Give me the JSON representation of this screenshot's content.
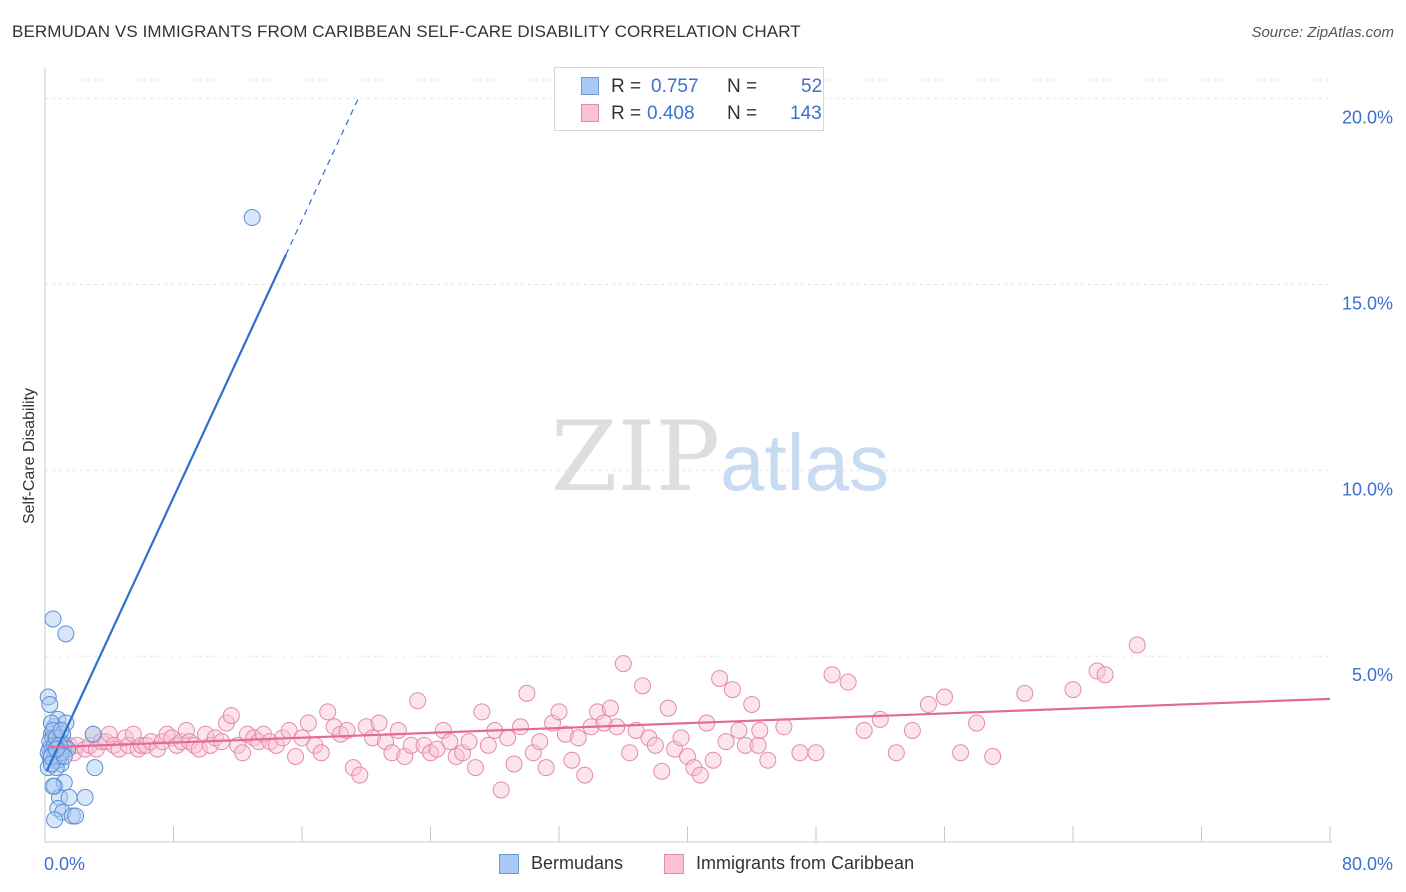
{
  "header": {
    "title": "BERMUDAN VS IMMIGRANTS FROM CARIBBEAN SELF-CARE DISABILITY CORRELATION CHART",
    "source": "Source: ZipAtlas.com"
  },
  "watermark": {
    "zip": "ZIP",
    "atlas": "atlas"
  },
  "legend": {
    "rows": [
      {
        "r_label": "R =",
        "r_value": "0.757",
        "n_label": "N =",
        "n_value": "52",
        "color": "#a9c8f2",
        "border": "#6a9ad8"
      },
      {
        "r_label": "R =",
        "r_value": "0.408",
        "n_label": "N =",
        "n_value": "143",
        "color": "#f9c3d3",
        "border": "#e58aa8"
      }
    ]
  },
  "chart_data": {
    "type": "scatter",
    "title": "BERMUDAN VS IMMIGRANTS FROM CARIBBEAN SELF-CARE DISABILITY CORRELATION CHART",
    "xlabel": "",
    "ylabel": "Self-Care Disability",
    "xlim": [
      0,
      80
    ],
    "ylim": [
      0,
      20.5
    ],
    "x_tick_labels": [
      "0.0%",
      "80.0%"
    ],
    "y_ticks": [
      5,
      10,
      15,
      20
    ],
    "y_tick_labels": [
      "5.0%",
      "10.0%",
      "15.0%",
      "20.0%"
    ],
    "grid": true,
    "series": [
      {
        "name": "Bermudans",
        "color": "#a9c8f2",
        "stroke": "#5c8fd6",
        "line_color": "#2f6fcf",
        "r": 0.757,
        "n": 52,
        "trend": {
          "x0": 0.1,
          "y0": 1.9,
          "x1": 15.0,
          "y1": 15.8,
          "dash_x1": 19.5,
          "dash_y1": 20.0
        },
        "points": [
          [
            0.2,
            3.9
          ],
          [
            0.3,
            2.5
          ],
          [
            0.4,
            2.9
          ],
          [
            0.5,
            2.2
          ],
          [
            0.6,
            3.1
          ],
          [
            0.2,
            2.0
          ],
          [
            0.4,
            2.6
          ],
          [
            0.7,
            2.4
          ],
          [
            0.8,
            3.3
          ],
          [
            0.3,
            2.3
          ],
          [
            0.5,
            2.8
          ],
          [
            0.9,
            2.7
          ],
          [
            1.0,
            2.1
          ],
          [
            0.6,
            2.4
          ],
          [
            0.8,
            2.2
          ],
          [
            1.2,
            2.6
          ],
          [
            0.4,
            3.2
          ],
          [
            0.7,
            2.0
          ],
          [
            0.3,
            2.7
          ],
          [
            0.5,
            3.0
          ],
          [
            0.9,
            2.3
          ],
          [
            1.1,
            2.9
          ],
          [
            1.4,
            2.5
          ],
          [
            1.3,
            3.2
          ],
          [
            0.2,
            2.4
          ],
          [
            0.6,
            2.6
          ],
          [
            0.8,
            2.5
          ],
          [
            1.0,
            2.4
          ],
          [
            0.4,
            2.3
          ],
          [
            0.3,
            3.7
          ],
          [
            0.5,
            6.0
          ],
          [
            1.3,
            5.6
          ],
          [
            12.9,
            16.8
          ],
          [
            3.1,
            2.0
          ],
          [
            3.0,
            2.9
          ],
          [
            0.6,
            1.5
          ],
          [
            0.9,
            1.2
          ],
          [
            1.2,
            1.6
          ],
          [
            1.5,
            1.2
          ],
          [
            2.5,
            1.2
          ],
          [
            0.8,
            0.9
          ],
          [
            1.1,
            0.8
          ],
          [
            0.6,
            0.6
          ],
          [
            1.7,
            0.7
          ],
          [
            1.9,
            0.7
          ],
          [
            0.5,
            1.5
          ],
          [
            0.7,
            2.8
          ],
          [
            1.0,
            3.0
          ],
          [
            0.4,
            2.1
          ],
          [
            0.9,
            2.6
          ],
          [
            1.2,
            2.3
          ],
          [
            0.7,
            2.5
          ]
        ]
      },
      {
        "name": "Immigrants from Caribbean",
        "color": "#f9c3d3",
        "stroke": "#e58aa8",
        "line_color": "#e36a98",
        "r": 0.408,
        "n": 143,
        "trend": {
          "x0": 0.3,
          "y0": 2.55,
          "x1": 80.0,
          "y1": 3.85
        },
        "points": [
          [
            0.5,
            2.6
          ],
          [
            0.8,
            2.4
          ],
          [
            1.0,
            2.7
          ],
          [
            1.2,
            2.5
          ],
          [
            1.5,
            2.6
          ],
          [
            1.8,
            2.4
          ],
          [
            2.0,
            2.6
          ],
          [
            2.5,
            2.5
          ],
          [
            2.8,
            2.6
          ],
          [
            3.0,
            2.9
          ],
          [
            3.2,
            2.5
          ],
          [
            3.5,
            2.7
          ],
          [
            3.8,
            2.7
          ],
          [
            4.0,
            2.9
          ],
          [
            4.3,
            2.6
          ],
          [
            4.6,
            2.5
          ],
          [
            5.0,
            2.8
          ],
          [
            5.2,
            2.6
          ],
          [
            5.5,
            2.9
          ],
          [
            5.8,
            2.5
          ],
          [
            6.0,
            2.6
          ],
          [
            6.3,
            2.6
          ],
          [
            6.6,
            2.7
          ],
          [
            7.0,
            2.5
          ],
          [
            7.3,
            2.7
          ],
          [
            7.6,
            2.9
          ],
          [
            7.9,
            2.8
          ],
          [
            8.2,
            2.6
          ],
          [
            8.5,
            2.7
          ],
          [
            8.8,
            3.0
          ],
          [
            9.0,
            2.7
          ],
          [
            9.3,
            2.6
          ],
          [
            9.6,
            2.5
          ],
          [
            10.0,
            2.9
          ],
          [
            10.3,
            2.6
          ],
          [
            10.6,
            2.8
          ],
          [
            11.0,
            2.7
          ],
          [
            11.3,
            3.2
          ],
          [
            11.6,
            3.4
          ],
          [
            12.0,
            2.6
          ],
          [
            12.3,
            2.4
          ],
          [
            12.6,
            2.9
          ],
          [
            13.0,
            2.8
          ],
          [
            13.3,
            2.7
          ],
          [
            13.6,
            2.9
          ],
          [
            14.0,
            2.7
          ],
          [
            14.4,
            2.6
          ],
          [
            14.8,
            2.8
          ],
          [
            15.2,
            3.0
          ],
          [
            15.6,
            2.3
          ],
          [
            16.0,
            2.8
          ],
          [
            16.4,
            3.2
          ],
          [
            16.8,
            2.6
          ],
          [
            17.2,
            2.4
          ],
          [
            17.6,
            3.5
          ],
          [
            18.0,
            3.1
          ],
          [
            18.4,
            2.9
          ],
          [
            18.8,
            3.0
          ],
          [
            19.2,
            2.0
          ],
          [
            19.6,
            1.8
          ],
          [
            20.0,
            3.1
          ],
          [
            20.4,
            2.8
          ],
          [
            20.8,
            3.2
          ],
          [
            21.2,
            2.7
          ],
          [
            21.6,
            2.4
          ],
          [
            22.0,
            3.0
          ],
          [
            22.4,
            2.3
          ],
          [
            22.8,
            2.6
          ],
          [
            23.2,
            3.8
          ],
          [
            23.6,
            2.6
          ],
          [
            24.0,
            2.4
          ],
          [
            24.4,
            2.5
          ],
          [
            24.8,
            3.0
          ],
          [
            25.2,
            2.7
          ],
          [
            25.6,
            2.3
          ],
          [
            26.0,
            2.4
          ],
          [
            26.4,
            2.7
          ],
          [
            26.8,
            2.0
          ],
          [
            27.2,
            3.5
          ],
          [
            27.6,
            2.6
          ],
          [
            28.0,
            3.0
          ],
          [
            28.4,
            1.4
          ],
          [
            28.8,
            2.8
          ],
          [
            29.2,
            2.1
          ],
          [
            29.6,
            3.1
          ],
          [
            30.0,
            4.0
          ],
          [
            30.4,
            2.4
          ],
          [
            30.8,
            2.7
          ],
          [
            31.2,
            2.0
          ],
          [
            31.6,
            3.2
          ],
          [
            32.0,
            3.5
          ],
          [
            32.4,
            2.9
          ],
          [
            32.8,
            2.2
          ],
          [
            33.2,
            2.8
          ],
          [
            33.6,
            1.8
          ],
          [
            34.0,
            3.1
          ],
          [
            34.4,
            3.5
          ],
          [
            34.8,
            3.2
          ],
          [
            35.2,
            3.6
          ],
          [
            35.6,
            3.1
          ],
          [
            36.0,
            4.8
          ],
          [
            36.4,
            2.4
          ],
          [
            36.8,
            3.0
          ],
          [
            37.2,
            4.2
          ],
          [
            37.6,
            2.8
          ],
          [
            38.0,
            2.6
          ],
          [
            38.4,
            1.9
          ],
          [
            38.8,
            3.6
          ],
          [
            39.2,
            2.5
          ],
          [
            39.6,
            2.8
          ],
          [
            40.0,
            2.3
          ],
          [
            40.4,
            2.0
          ],
          [
            40.8,
            1.8
          ],
          [
            41.2,
            3.2
          ],
          [
            41.6,
            2.2
          ],
          [
            42.0,
            4.4
          ],
          [
            42.4,
            2.7
          ],
          [
            42.8,
            4.1
          ],
          [
            43.2,
            3.0
          ],
          [
            43.6,
            2.6
          ],
          [
            44.0,
            3.7
          ],
          [
            44.4,
            2.6
          ],
          [
            45.0,
            2.2
          ],
          [
            46.0,
            3.1
          ],
          [
            47.0,
            2.4
          ],
          [
            48.0,
            2.4
          ],
          [
            49.0,
            4.5
          ],
          [
            50.0,
            4.3
          ],
          [
            51.0,
            3.0
          ],
          [
            52.0,
            3.3
          ],
          [
            53.0,
            2.4
          ],
          [
            54.0,
            3.0
          ],
          [
            55.0,
            3.7
          ],
          [
            56.0,
            3.9
          ],
          [
            57.0,
            2.4
          ],
          [
            58.0,
            3.2
          ],
          [
            59.0,
            2.3
          ],
          [
            61.0,
            4.0
          ],
          [
            64.0,
            4.1
          ],
          [
            65.5,
            4.6
          ],
          [
            68.0,
            5.3
          ],
          [
            66.0,
            4.5
          ],
          [
            44.5,
            3.0
          ]
        ]
      }
    ]
  },
  "bottom_legend": [
    {
      "label": "Bermudans",
      "color": "#a9c8f2",
      "border": "#6a9ad8"
    },
    {
      "label": "Immigrants from Caribbean",
      "color": "#f9c3d3",
      "border": "#e58aa8"
    }
  ]
}
